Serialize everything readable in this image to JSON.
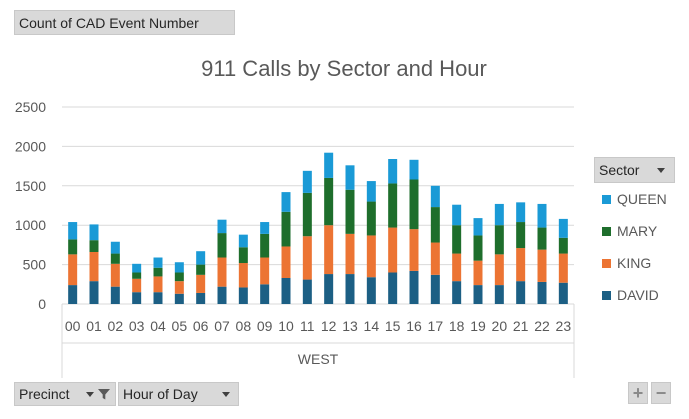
{
  "pivot": {
    "value_field": "Count of CAD Event Number",
    "filter_field": "Precinct",
    "axis_field": "Hour of Day",
    "legend_field": "Sector"
  },
  "icons": {
    "dropdown": "dropdown-arrow-icon",
    "filter": "filter-funnel-icon",
    "zoom_in": "plus-icon",
    "zoom_out": "minus-icon"
  },
  "zoom": {
    "in_label": "+",
    "out_label": "−"
  },
  "colors": {
    "QUEEN": "#1a9ad6",
    "MARY": "#1e6e2c",
    "KING": "#ec7433",
    "DAVID": "#1c5f84"
  },
  "chart_data": {
    "type": "bar",
    "stacked": true,
    "title": "911 Calls by Sector and Hour",
    "xlabel": "",
    "ylabel": "",
    "group_label": "WEST",
    "categories": [
      "00",
      "01",
      "02",
      "03",
      "04",
      "05",
      "06",
      "07",
      "08",
      "09",
      "10",
      "11",
      "12",
      "13",
      "14",
      "15",
      "16",
      "17",
      "18",
      "19",
      "20",
      "21",
      "22",
      "23"
    ],
    "ylim": [
      0,
      2500
    ],
    "yticks": [
      0,
      500,
      1000,
      1500,
      2000,
      2500
    ],
    "grid": true,
    "legend_position": "right",
    "legend_order": [
      "QUEEN",
      "MARY",
      "KING",
      "DAVID"
    ],
    "series": [
      {
        "name": "DAVID",
        "values": [
          240,
          290,
          220,
          150,
          150,
          130,
          140,
          220,
          210,
          250,
          330,
          310,
          380,
          380,
          340,
          400,
          420,
          370,
          290,
          240,
          240,
          290,
          280,
          270
        ]
      },
      {
        "name": "KING",
        "values": [
          390,
          370,
          290,
          170,
          200,
          160,
          230,
          370,
          310,
          340,
          400,
          550,
          620,
          510,
          530,
          570,
          530,
          410,
          350,
          310,
          390,
          420,
          410,
          370
        ]
      },
      {
        "name": "MARY",
        "values": [
          190,
          150,
          130,
          80,
          110,
          110,
          130,
          310,
          200,
          300,
          440,
          550,
          600,
          560,
          430,
          560,
          630,
          450,
          360,
          320,
          370,
          330,
          280,
          200
        ]
      },
      {
        "name": "QUEEN",
        "values": [
          220,
          200,
          150,
          110,
          130,
          130,
          170,
          170,
          160,
          150,
          250,
          280,
          320,
          310,
          260,
          310,
          250,
          270,
          260,
          220,
          270,
          250,
          300,
          240
        ]
      }
    ]
  }
}
